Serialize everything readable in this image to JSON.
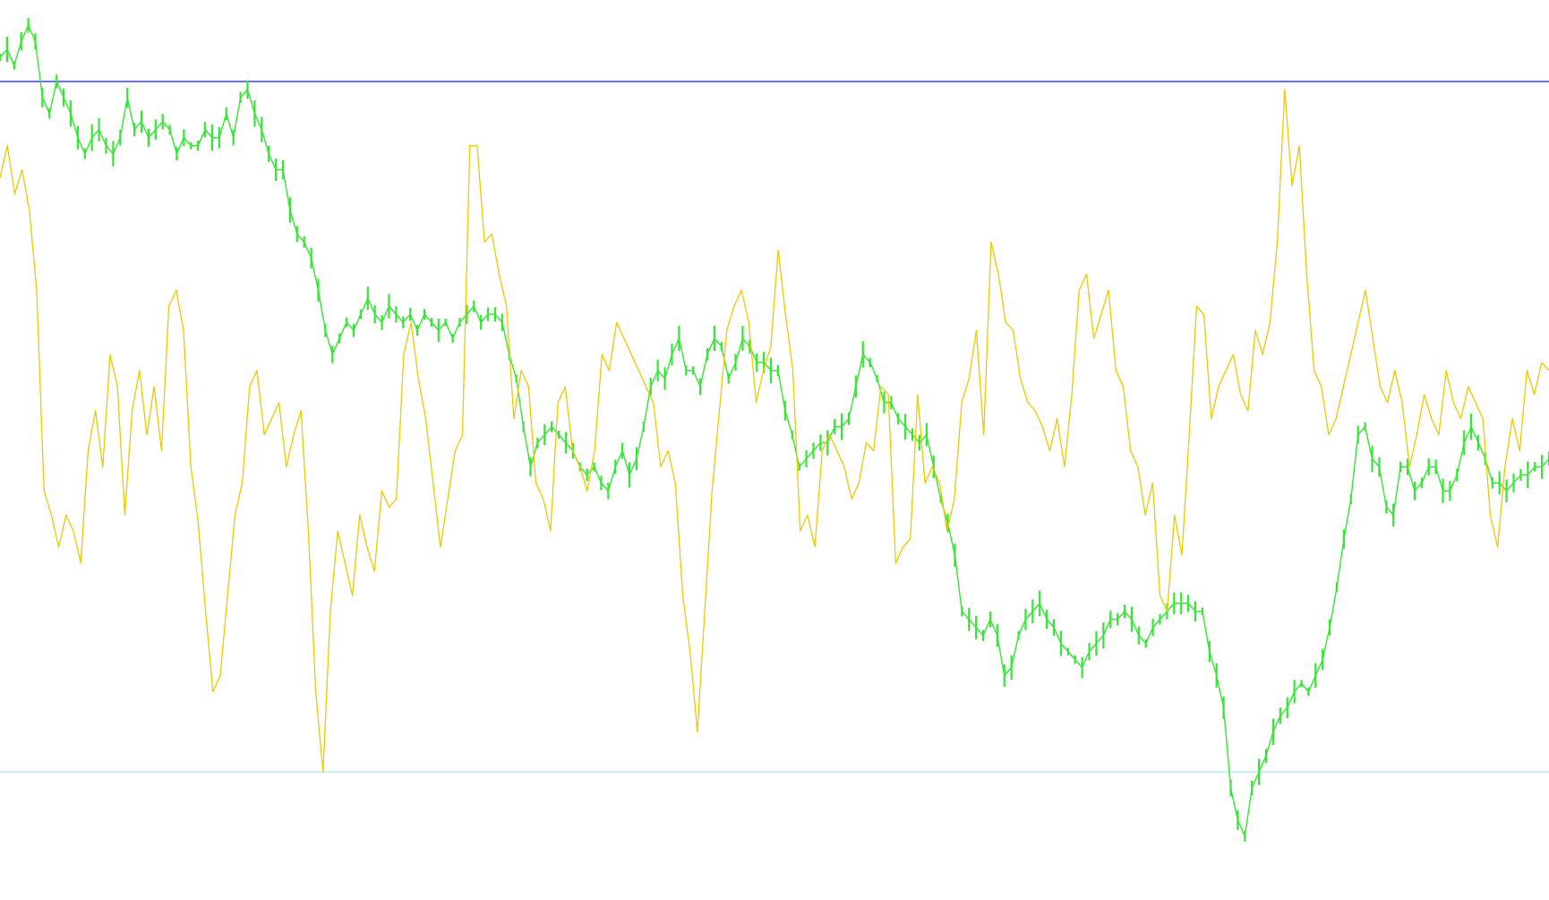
{
  "chart_data": {
    "type": "line",
    "title": "",
    "xlabel": "",
    "ylabel": "",
    "grid": false,
    "legend": "none",
    "ylim": [
      -0.1,
      1.0
    ],
    "reference_lines": [
      {
        "value": 0.0,
        "color": "#b8eaf0"
      },
      {
        "value": 0.86,
        "color": "#3a46d6"
      }
    ],
    "series": [
      {
        "color": "#33e833",
        "style": "bars",
        "values": [
          0.89,
          0.9,
          0.88,
          0.91,
          0.93,
          0.91,
          0.84,
          0.82,
          0.86,
          0.84,
          0.82,
          0.79,
          0.77,
          0.79,
          0.8,
          0.78,
          0.77,
          0.79,
          0.84,
          0.8,
          0.81,
          0.79,
          0.8,
          0.81,
          0.8,
          0.77,
          0.79,
          0.78,
          0.78,
          0.8,
          0.79,
          0.79,
          0.82,
          0.79,
          0.84,
          0.85,
          0.82,
          0.8,
          0.77,
          0.75,
          0.75,
          0.7,
          0.67,
          0.66,
          0.64,
          0.6,
          0.55,
          0.52,
          0.54,
          0.56,
          0.55,
          0.57,
          0.59,
          0.57,
          0.56,
          0.58,
          0.57,
          0.56,
          0.57,
          0.55,
          0.57,
          0.56,
          0.55,
          0.56,
          0.54,
          0.56,
          0.57,
          0.58,
          0.56,
          0.57,
          0.57,
          0.56,
          0.52,
          0.49,
          0.43,
          0.38,
          0.41,
          0.42,
          0.43,
          0.42,
          0.41,
          0.4,
          0.38,
          0.37,
          0.38,
          0.36,
          0.35,
          0.38,
          0.4,
          0.37,
          0.39,
          0.43,
          0.48,
          0.5,
          0.49,
          0.52,
          0.54,
          0.5,
          0.5,
          0.48,
          0.52,
          0.54,
          0.53,
          0.49,
          0.51,
          0.54,
          0.53,
          0.51,
          0.51,
          0.5,
          0.5,
          0.45,
          0.42,
          0.38,
          0.39,
          0.4,
          0.41,
          0.41,
          0.43,
          0.43,
          0.44,
          0.48,
          0.52,
          0.51,
          0.49,
          0.46,
          0.46,
          0.44,
          0.43,
          0.42,
          0.41,
          0.42,
          0.38,
          0.34,
          0.31,
          0.27,
          0.2,
          0.19,
          0.18,
          0.17,
          0.19,
          0.17,
          0.12,
          0.13,
          0.17,
          0.19,
          0.2,
          0.21,
          0.19,
          0.18,
          0.16,
          0.15,
          0.14,
          0.13,
          0.15,
          0.16,
          0.17,
          0.19,
          0.19,
          0.2,
          0.19,
          0.17,
          0.16,
          0.18,
          0.19,
          0.2,
          0.21,
          0.21,
          0.21,
          0.2,
          0.2,
          0.15,
          0.12,
          0.08,
          -0.02,
          -0.06,
          -0.08,
          -0.02,
          0.0,
          0.02,
          0.05,
          0.07,
          0.08,
          0.1,
          0.11,
          0.1,
          0.12,
          0.14,
          0.18,
          0.23,
          0.29,
          0.34,
          0.42,
          0.43,
          0.39,
          0.38,
          0.33,
          0.32,
          0.38,
          0.38,
          0.35,
          0.36,
          0.38,
          0.38,
          0.35,
          0.35,
          0.37,
          0.41,
          0.43,
          0.41,
          0.39,
          0.36,
          0.36,
          0.35,
          0.36,
          0.37,
          0.37,
          0.38,
          0.38,
          0.39
        ]
      },
      {
        "color": "#f0c800",
        "style": "line",
        "values": [
          0.74,
          0.78,
          0.72,
          0.75,
          0.7,
          0.6,
          0.35,
          0.32,
          0.28,
          0.32,
          0.3,
          0.26,
          0.4,
          0.45,
          0.38,
          0.52,
          0.48,
          0.32,
          0.45,
          0.5,
          0.42,
          0.48,
          0.4,
          0.58,
          0.6,
          0.55,
          0.38,
          0.31,
          0.2,
          0.1,
          0.12,
          0.22,
          0.32,
          0.36,
          0.48,
          0.5,
          0.42,
          0.44,
          0.46,
          0.38,
          0.42,
          0.45,
          0.3,
          0.1,
          0.0,
          0.2,
          0.3,
          0.26,
          0.22,
          0.32,
          0.28,
          0.25,
          0.35,
          0.33,
          0.34,
          0.52,
          0.56,
          0.49,
          0.44,
          0.36,
          0.28,
          0.34,
          0.4,
          0.42,
          0.78,
          0.78,
          0.66,
          0.67,
          0.62,
          0.58,
          0.44,
          0.5,
          0.48,
          0.36,
          0.34,
          0.3,
          0.46,
          0.48,
          0.4,
          0.38,
          0.35,
          0.4,
          0.52,
          0.5,
          0.56,
          0.54,
          0.52,
          0.5,
          0.48,
          0.46,
          0.38,
          0.4,
          0.36,
          0.22,
          0.15,
          0.05,
          0.2,
          0.35,
          0.45,
          0.55,
          0.58,
          0.6,
          0.56,
          0.46,
          0.5,
          0.53,
          0.65,
          0.57,
          0.5,
          0.3,
          0.32,
          0.28,
          0.4,
          0.42,
          0.4,
          0.38,
          0.34,
          0.36,
          0.41,
          0.4,
          0.48,
          0.47,
          0.26,
          0.28,
          0.29,
          0.47,
          0.36,
          0.38,
          0.36,
          0.3,
          0.34,
          0.46,
          0.49,
          0.55,
          0.42,
          0.66,
          0.62,
          0.56,
          0.55,
          0.49,
          0.46,
          0.45,
          0.43,
          0.4,
          0.44,
          0.38,
          0.47,
          0.6,
          0.62,
          0.54,
          0.57,
          0.6,
          0.5,
          0.48,
          0.4,
          0.38,
          0.32,
          0.36,
          0.22,
          0.2,
          0.32,
          0.27,
          0.42,
          0.58,
          0.57,
          0.44,
          0.48,
          0.5,
          0.52,
          0.47,
          0.45,
          0.55,
          0.52,
          0.56,
          0.66,
          0.85,
          0.73,
          0.78,
          0.62,
          0.5,
          0.48,
          0.42,
          0.44,
          0.48,
          0.52,
          0.56,
          0.6,
          0.54,
          0.48,
          0.46,
          0.5,
          0.46,
          0.38,
          0.42,
          0.47,
          0.44,
          0.42,
          0.5,
          0.46,
          0.44,
          0.48,
          0.46,
          0.44,
          0.32,
          0.28,
          0.38,
          0.44,
          0.4,
          0.5,
          0.47,
          0.51,
          0.5
        ]
      }
    ]
  }
}
